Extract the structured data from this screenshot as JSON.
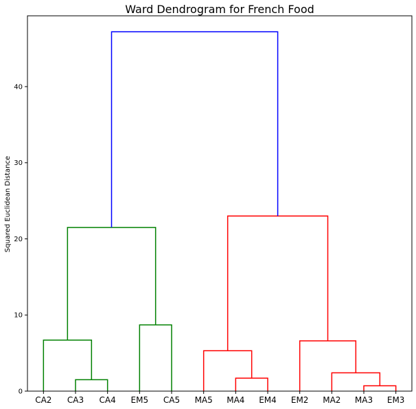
{
  "chart_data": {
    "type": "dendrogram",
    "title": "Ward Dendrogram for French Food",
    "xlabel": "",
    "ylabel": "Squared Euclidean Distance",
    "ylim": [
      0,
      49.3
    ],
    "yticks": [
      0,
      10,
      20,
      30,
      40
    ],
    "grid": false,
    "leaves": [
      "CA2",
      "CA3",
      "CA4",
      "EM5",
      "CA5",
      "MA5",
      "MA4",
      "EM4",
      "EM2",
      "MA2",
      "MA3",
      "EM3"
    ],
    "merges": [
      {
        "left": "CA3",
        "right": "CA4",
        "height": 1.5,
        "color": "#008000"
      },
      {
        "left": "CA2",
        "right": "CA3+CA4",
        "height": 6.7,
        "color": "#008000"
      },
      {
        "left": "EM5",
        "right": "CA5",
        "height": 8.7,
        "color": "#008000"
      },
      {
        "left": "CA2+CA3+CA4",
        "right": "EM5+CA5",
        "height": 21.5,
        "color": "#008000"
      },
      {
        "left": "MA4",
        "right": "EM4",
        "height": 1.7,
        "color": "#ff0000"
      },
      {
        "left": "MA5",
        "right": "MA4+EM4",
        "height": 5.3,
        "color": "#ff0000"
      },
      {
        "left": "MA3",
        "right": "EM3",
        "height": 0.7,
        "color": "#ff0000"
      },
      {
        "left": "MA2",
        "right": "MA3+EM3",
        "height": 2.4,
        "color": "#ff0000"
      },
      {
        "left": "EM2",
        "right": "MA2+MA3+EM3",
        "height": 6.6,
        "color": "#ff0000"
      },
      {
        "left": "MA5+MA4+EM4",
        "right": "EM2+MA2+MA3+EM3",
        "height": 23.0,
        "color": "#ff0000"
      },
      {
        "left": "green-cluster",
        "right": "red-cluster",
        "height": 47.2,
        "color": "#0000ff"
      }
    ]
  }
}
